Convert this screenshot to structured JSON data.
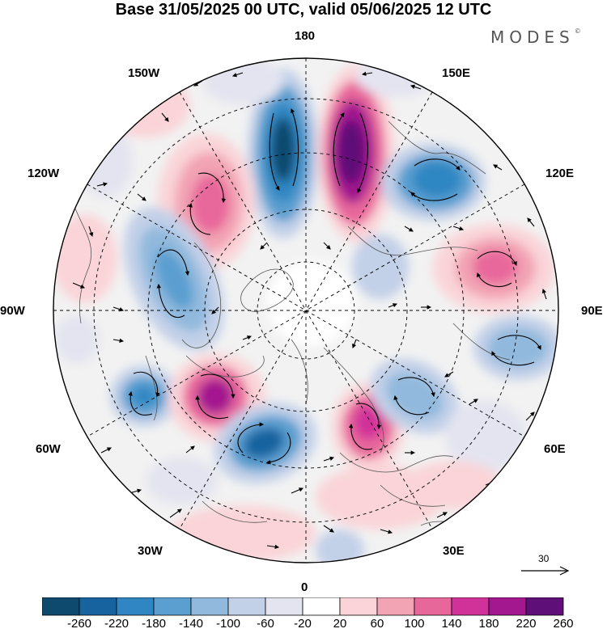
{
  "title": "Base 31/05/2025 00 UTC, valid 05/06/2025 12 UTC",
  "brand": "MODES",
  "brand_mark": "©",
  "longitude_labels": {
    "lon_180": "180",
    "lon_150e": "150E",
    "lon_120e": "120E",
    "lon_90e": "90E",
    "lon_60e": "60E",
    "lon_30e": "30E",
    "lon_0": "0",
    "lon_30w": "30W",
    "lon_60w": "60W",
    "lon_90w": "90W",
    "lon_120w": "120W",
    "lon_150w": "150W"
  },
  "reference_vector": {
    "label": "30"
  },
  "colorbar": {
    "labels": [
      "-260",
      "-220",
      "-180",
      "-140",
      "-100",
      "-60",
      "-20",
      "20",
      "60",
      "100",
      "140",
      "180",
      "220",
      "260"
    ],
    "colors": [
      "#0e4a6e",
      "#1763a0",
      "#2f86c2",
      "#5a9fd0",
      "#91b9dd",
      "#c2d0e8",
      "#e4e4f0",
      "#ffffff",
      "#fad4d8",
      "#f2a3b4",
      "#e8679b",
      "#d1329a",
      "#a3178f",
      "#5e0f78"
    ]
  },
  "anomaly_centres": [
    {
      "name": "trough-north-pacific-west",
      "value": -240
    },
    {
      "name": "ridge-north-pacific-east",
      "value": 250
    },
    {
      "name": "trough-east-siberia",
      "value": -160
    },
    {
      "name": "ridge-central-siberia",
      "value": 120
    },
    {
      "name": "trough-north-america",
      "value": -120
    },
    {
      "name": "ridge-alaska-canada",
      "value": 150
    },
    {
      "name": "ridge-greenland",
      "value": 220
    },
    {
      "name": "trough-north-atlantic",
      "value": -180
    },
    {
      "name": "trough-labrador",
      "value": -130
    },
    {
      "name": "ridge-scandinavia",
      "value": 190
    },
    {
      "name": "trough-ural",
      "value": -110
    },
    {
      "name": "trough-west-siberia",
      "value": -110
    }
  ]
}
